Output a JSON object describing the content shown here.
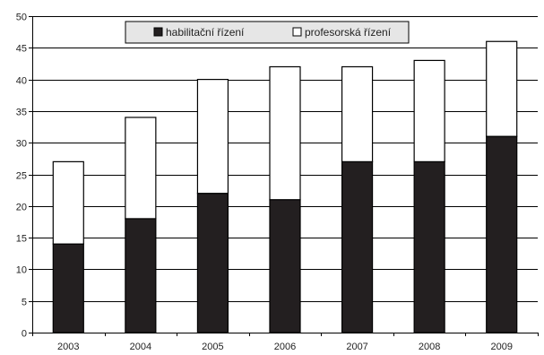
{
  "chart_data": {
    "type": "bar",
    "stacked": true,
    "title": "",
    "xlabel": "",
    "ylabel": "",
    "categories": [
      "2003",
      "2004",
      "2005",
      "2006",
      "2007",
      "2008",
      "2009"
    ],
    "series": [
      {
        "name": "habilitační řízení",
        "color": "#231f20",
        "values": [
          14,
          18,
          22,
          21,
          27,
          27,
          31
        ]
      },
      {
        "name": "profesorská řízení",
        "color": "#ffffff",
        "values": [
          13,
          16,
          18,
          21,
          15,
          16,
          15
        ]
      }
    ],
    "ylim": [
      0,
      50
    ],
    "yticks": [
      0,
      5,
      10,
      15,
      20,
      25,
      30,
      35,
      40,
      45,
      50
    ],
    "grid": true,
    "legend_position": "top-center",
    "colors": {
      "grid": "#000000",
      "legend_background": "#e6e6e6",
      "bar_outline": "#000000"
    }
  }
}
